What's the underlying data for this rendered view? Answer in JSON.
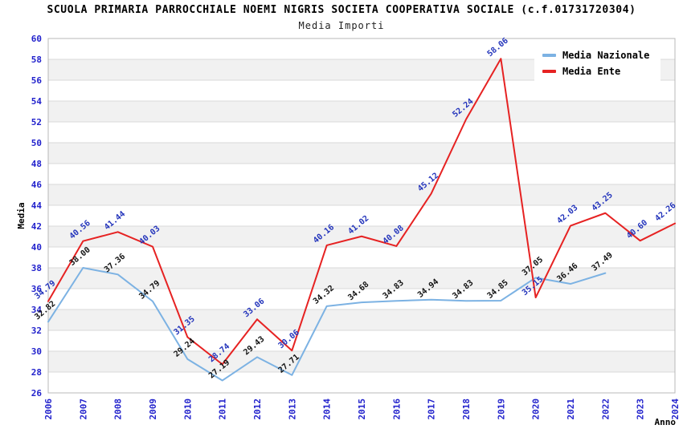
{
  "chart_data": {
    "type": "line",
    "title": "SCUOLA PRIMARIA PARROCCHIALE NOEMI NIGRIS SOCIETA COOPERATIVA SOCIALE (c.f.01731720304)",
    "subtitle": "Media Importi",
    "xlabel": "Anno",
    "ylabel": "Media",
    "ylim": [
      26,
      60
    ],
    "ytick_step": 2,
    "yticks": [
      26,
      28,
      30,
      32,
      34,
      36,
      38,
      40,
      42,
      44,
      46,
      48,
      50,
      52,
      54,
      56,
      58,
      60
    ],
    "grid": true,
    "legend_position": "top-right",
    "categories": [
      "2006",
      "2007",
      "2008",
      "2009",
      "2010",
      "2011",
      "2012",
      "2013",
      "2014",
      "2015",
      "2016",
      "2017",
      "2018",
      "2019",
      "2020",
      "2021",
      "2022",
      "2023",
      "2024"
    ],
    "series": [
      {
        "name": "Media Nazionale",
        "color": "#7cb2e3",
        "label_color": "#111111",
        "values": [
          32.82,
          38.0,
          37.36,
          34.79,
          29.24,
          27.19,
          29.43,
          27.71,
          34.32,
          34.68,
          34.83,
          34.94,
          34.83,
          34.85,
          37.05,
          36.46,
          37.49,
          null,
          null
        ]
      },
      {
        "name": "Media Ente",
        "color": "#e62222",
        "label_color": "#2233bb",
        "values": [
          34.79,
          40.56,
          41.44,
          40.03,
          31.35,
          28.74,
          33.06,
          30.06,
          40.16,
          41.02,
          40.08,
          45.12,
          52.24,
          58.06,
          35.15,
          42.03,
          43.25,
          40.6,
          42.26
        ]
      }
    ],
    "colors": {
      "tick": "#2222cc",
      "grid": "#d9d9d9",
      "band": "#f1f1f1",
      "border": "#b8b8b8",
      "axis_title": "#000000"
    }
  }
}
